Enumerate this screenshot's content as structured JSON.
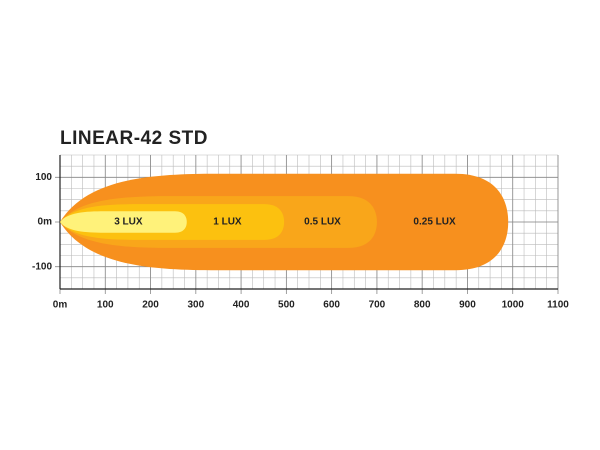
{
  "chart_data": {
    "type": "beam",
    "title": "LINEAR-42 STD",
    "xlim": [
      0,
      1100
    ],
    "ylim": [
      -150,
      150
    ],
    "xticks": [
      {
        "value": 0,
        "label": "0m"
      },
      100,
      200,
      300,
      400,
      500,
      600,
      700,
      800,
      900,
      1000,
      1100
    ],
    "yticks": [
      100,
      {
        "value": 0,
        "label": "0m"
      },
      -100
    ],
    "grid": true,
    "zones": [
      {
        "name": "0.25 LUX",
        "color": "#f7901e",
        "reach": 990,
        "half_width": 108
      },
      {
        "name": "0.5 LUX",
        "color": "#f9a61a",
        "reach": 700,
        "half_width": 58
      },
      {
        "name": "1 LUX",
        "color": "#fcc10f",
        "reach": 495,
        "half_width": 40
      },
      {
        "name": "3 LUX",
        "color": "#fff27a",
        "reach": 280,
        "half_width": 24
      }
    ]
  }
}
